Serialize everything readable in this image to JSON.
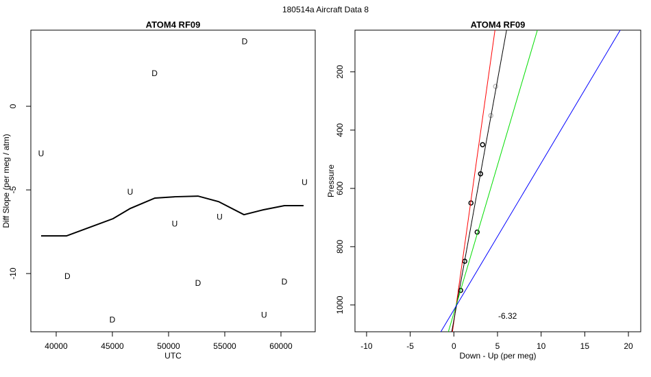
{
  "suptitle": "180514a   Aircraft Data 8",
  "chart_data": [
    {
      "type": "scatter",
      "title": "ATOM4 RF09",
      "x_label": "UTC",
      "y_label": "Diff Slope (per meg / atm)",
      "xlim": [
        37744,
        63049
      ],
      "ylim": [
        -13.48,
        4.55
      ],
      "xticks": [
        40000,
        45000,
        50000,
        55000,
        60000
      ],
      "yticks": [
        -10,
        -5,
        0
      ],
      "grid": false,
      "series": [
        {
          "name": "U",
          "style": "text",
          "color": "#ff0000",
          "x": [
            38659,
            46585,
            50549,
            54537,
            62098,
            58500
          ],
          "values": [
            -2.87,
            -5.16,
            -7.05,
            -6.64,
            -4.59,
            -12.5
          ]
        },
        {
          "name": "D",
          "style": "text",
          "color": "#0000ff",
          "x": [
            56768,
            48756,
            41000,
            45000,
            52622,
            60305
          ],
          "values": [
            3.85,
            1.93,
            -10.2,
            -12.79,
            -10.61,
            -10.53
          ]
        },
        {
          "style": "line",
          "color": "#000000",
          "x": [
            38659,
            40915,
            45061,
            46585,
            48780,
            50549,
            52622,
            54451,
            56707,
            58415,
            60305,
            62012
          ],
          "values": [
            -7.75,
            -7.75,
            -6.72,
            -6.11,
            -5.49,
            -5.41,
            -5.37,
            -5.7,
            -6.48,
            -6.19,
            -5.94,
            -5.94
          ]
        }
      ]
    },
    {
      "type": "scatter",
      "title": "ATOM4 RF09",
      "x_label": "Down - Up (per meg)",
      "y_label": "Pressure",
      "xlim": [
        -11.33,
        21.41
      ],
      "ylim": [
        1092,
        57
      ],
      "xticks": [
        -10,
        -5,
        0,
        5,
        10,
        15,
        20
      ],
      "yticks": [
        200,
        400,
        600,
        800,
        1000
      ],
      "grid": false,
      "annotation": "-6.32",
      "series": [
        {
          "style": "circle",
          "color": "#000000",
          "x": [
            0.78,
            1.25,
            1.96,
            2.67,
            3.06,
            3.29
          ],
          "values": [
            950,
            850,
            650,
            750,
            550,
            450
          ]
        },
        {
          "style": "circle",
          "color": "#bbbbbb",
          "x": [
            4.24,
            4.78
          ],
          "values": [
            350,
            250
          ]
        },
        {
          "style": "line",
          "color": "#ff0000",
          "x": [
            -0.16,
            4.71
          ],
          "values": [
            1092,
            57
          ]
        },
        {
          "style": "line",
          "color": "#000000",
          "x": [
            -0.24,
            6.04
          ],
          "values": [
            1092,
            57
          ]
        },
        {
          "style": "line",
          "color": "#00dd00",
          "x": [
            -0.63,
            9.57
          ],
          "values": [
            1092,
            57
          ]
        },
        {
          "style": "line",
          "color": "#0000ff",
          "x": [
            -1.49,
            19.06
          ],
          "values": [
            1092,
            57
          ]
        }
      ]
    }
  ]
}
